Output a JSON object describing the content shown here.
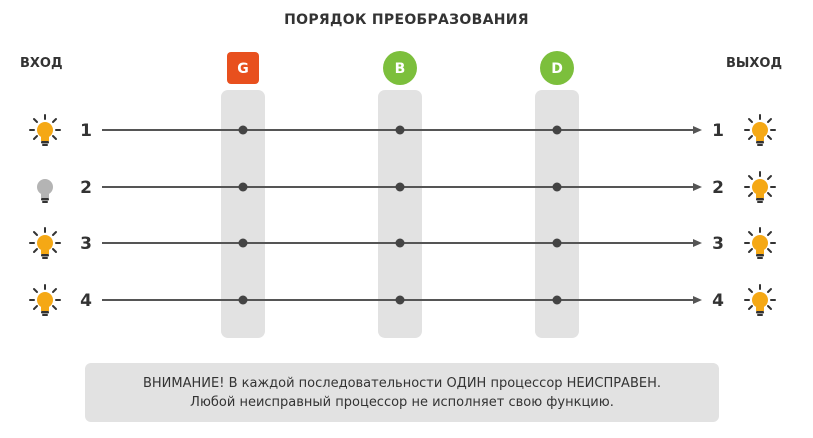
{
  "title": "ПОРЯДОК ПРЕОБРАЗОВАНИЯ",
  "input_label": "ВХОД",
  "output_label": "ВЫХОД",
  "processors": [
    {
      "letter": "G",
      "shape": "square",
      "color": "#e8501e"
    },
    {
      "letter": "B",
      "shape": "circle",
      "color": "#7cbf3c"
    },
    {
      "letter": "D",
      "shape": "circle",
      "color": "#7cbf3c"
    }
  ],
  "channels": [
    {
      "input_number": "1",
      "output_number": "1",
      "input_bulb": "on",
      "output_bulb": "on"
    },
    {
      "input_number": "2",
      "output_number": "2",
      "input_bulb": "off",
      "output_bulb": "on"
    },
    {
      "input_number": "3",
      "output_number": "3",
      "input_bulb": "on",
      "output_bulb": "on"
    },
    {
      "input_number": "4",
      "output_number": "4",
      "input_bulb": "on",
      "output_bulb": "on"
    }
  ],
  "bulb_colors": {
    "on": "#f5a815",
    "off": "#b4b4b4"
  },
  "notice": {
    "line1": "ВНИМАНИЕ! В каждой последовательности ОДИН процессор НЕИСПРАВЕН.",
    "line2": "Любой неисправный процессор не исполняет свою функцию."
  }
}
